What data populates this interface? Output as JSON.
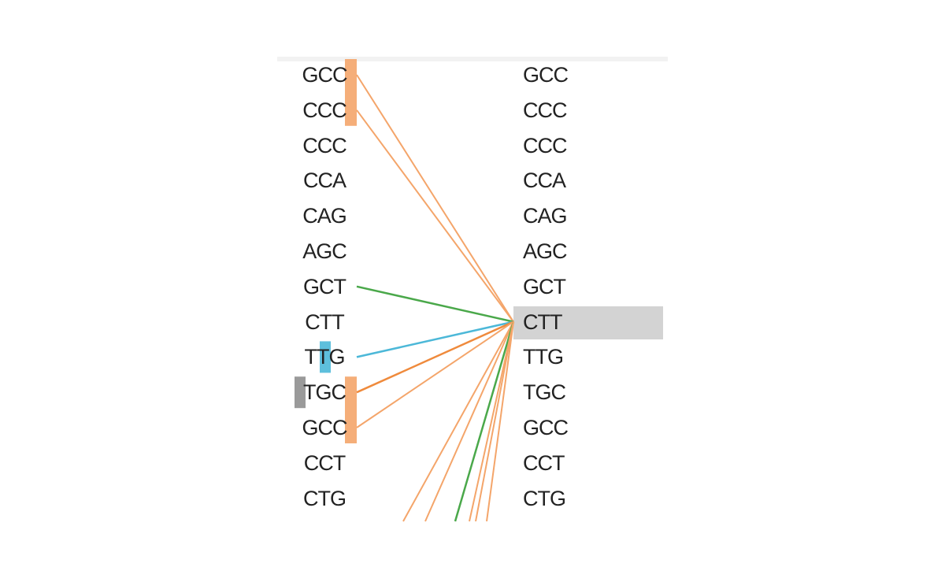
{
  "left_codons": [
    "GCC",
    "CCC",
    "CCC",
    "CCA",
    "CAG",
    "AGC",
    "GCT",
    "CTT",
    "TTG",
    "TGC",
    "GCC",
    "CCT",
    "CTG"
  ],
  "right_codons": [
    "GCC",
    "CCC",
    "CCC",
    "CCA",
    "CAG",
    "AGC",
    "GCT",
    "CTT",
    "TTG",
    "TGC",
    "GCC",
    "CCT",
    "CTG"
  ],
  "selected_right_index": 7,
  "colors": {
    "orange": "#f4a56a",
    "orange_dark": "#ef8a3c",
    "green": "#4aa84a",
    "blue": "#4cb8d8",
    "gray": "#9a9a9a",
    "selection": "#d3d3d3"
  },
  "links": [
    {
      "from_row": 0,
      "color": "orange"
    },
    {
      "from_row": 1,
      "color": "orange"
    },
    {
      "from_row": 6,
      "color": "green"
    },
    {
      "from_row": 8,
      "color": "blue"
    },
    {
      "from_row": 9,
      "color": "orange_dark"
    },
    {
      "from_row": 10,
      "color": "orange"
    }
  ],
  "markers": [
    {
      "rows": [
        0,
        1
      ],
      "color": "orange"
    },
    {
      "rows": [
        8,
        8
      ],
      "color": "blue"
    },
    {
      "rows": [
        9,
        10
      ],
      "color": "orange"
    },
    {
      "rows": [
        9,
        9
      ],
      "color": "gray"
    }
  ]
}
